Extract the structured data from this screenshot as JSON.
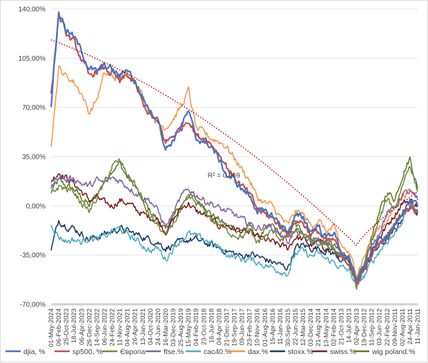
{
  "chart_data": {
    "type": "line",
    "title": "",
    "xlabel": "",
    "ylabel": "",
    "ylim": [
      -70,
      140
    ],
    "y_ticks": [
      "140,00%",
      "105,00%",
      "70,00%",
      "35,00%",
      "0,00%",
      "-35,00%",
      "-70,00%"
    ],
    "y_tick_values": [
      140,
      105,
      70,
      35,
      0,
      -35,
      -70
    ],
    "x_note": "dates run from newest (left) to oldest (right)",
    "categories": [
      "01-May-2024",
      "06-Feb-2024",
      "25-Oct-2023",
      "18-Jul-2023",
      "06-Apr-2023",
      "26-Dec-2022",
      "14-Sep-2022",
      "06-Jun-2022",
      "24-Feb-2022",
      "11-Nov-2021",
      "04-Aug-2021",
      "26-Apr-2021",
      "13-Jan-2021",
      "04-Oct-2020",
      "24-Jun-2020",
      "16-Mar-2020",
      "03-Dec-2019",
      "25-Aug-2019",
      "15-May-2019",
      "04-Feb-2019",
      "23-Oct-2018",
      "16-Jul-2018",
      "04-Apr-2018",
      "21-Dec-2017",
      "19-Sep-2017",
      "09-Jun-2017",
      "23-Feb-2017",
      "10-Nov-2016",
      "01-Aug-2016",
      "15-Apr-2016",
      "11-Jan-2016",
      "30-Sep-2015",
      "22-Jun-2015",
      "12-Mar-2015",
      "03-Dec-2014",
      "21-Aug-2014",
      "13-May-2014",
      "02-Feb-2014",
      "21-Oct-2013",
      "14-Jul-2013",
      "02-Apr-2013",
      "19-Dec-2012",
      "11-Sep-2012",
      "03-Jun-2012",
      "22-Feb-2012",
      "09-Nov-2011",
      "02-Aug-2011",
      "24-Apr-2011",
      "11-Jan-2011"
    ],
    "series": [
      {
        "name": "djia, %",
        "color": "#4472c4",
        "values": [
          72,
          138,
          125,
          120,
          110,
          98,
          95,
          100,
          97,
          92,
          98,
          88,
          77,
          67,
          62,
          40,
          47,
          57,
          67,
          47,
          47,
          42,
          33,
          22,
          18,
          12,
          7,
          -3,
          -5,
          -7,
          -13,
          -18,
          -8,
          -8,
          -18,
          -14,
          -23,
          -18,
          -33,
          -38,
          -53,
          -43,
          -33,
          -23,
          -23,
          -13,
          -3,
          3,
          0
        ]
      },
      {
        "name": "sp500, %",
        "color": "#c0504d",
        "values": [
          78,
          136,
          122,
          116,
          104,
          92,
          96,
          98,
          94,
          88,
          93,
          86,
          73,
          64,
          60,
          45,
          50,
          55,
          62,
          50,
          48,
          44,
          37,
          28,
          20,
          14,
          8,
          -2,
          -6,
          -9,
          -14,
          -20,
          -10,
          -12,
          -20,
          -18,
          -26,
          -24,
          -35,
          -40,
          -55,
          -45,
          -36,
          -26,
          -22,
          -12,
          -5,
          0,
          -3
        ]
      },
      {
        "name": "Європа",
        "color": "#70893c",
        "values": [
          8,
          14,
          12,
          10,
          2,
          -4,
          6,
          16,
          28,
          32,
          22,
          16,
          2,
          -8,
          -14,
          -22,
          -12,
          -4,
          6,
          2,
          -2,
          -10,
          -13,
          -18,
          -20,
          -22,
          -18,
          -26,
          -22,
          -18,
          -23,
          -22,
          -18,
          -20,
          -26,
          -27,
          -28,
          -30,
          -36,
          -38,
          -58,
          -45,
          -25,
          -10,
          5,
          -2,
          15,
          30,
          10
        ]
      },
      {
        "name": "ftse.%",
        "color": "#8064a2",
        "values": [
          12,
          22,
          18,
          20,
          16,
          14,
          18,
          16,
          20,
          18,
          14,
          10,
          6,
          4,
          -4,
          -15,
          -6,
          6,
          12,
          8,
          4,
          2,
          -2,
          -4,
          -6,
          -10,
          -13,
          -16,
          -14,
          -16,
          -20,
          -25,
          -18,
          -22,
          -26,
          -24,
          -28,
          -30,
          -36,
          -38,
          -52,
          -42,
          -28,
          -18,
          -5,
          -2,
          8,
          10,
          4
        ]
      },
      {
        "name": "cac40.%",
        "color": "#4bacc6",
        "values": [
          -12,
          -22,
          -25,
          -24,
          -26,
          -22,
          -24,
          -22,
          -18,
          -16,
          -20,
          -24,
          -28,
          -32,
          -30,
          -38,
          -30,
          -24,
          -20,
          -22,
          -24,
          -26,
          -30,
          -34,
          -36,
          -38,
          -38,
          -40,
          -42,
          -44,
          -46,
          -48,
          -34,
          -32,
          -36,
          -34,
          -38,
          -40,
          -44,
          -46,
          -56,
          -50,
          -40,
          -32,
          -25,
          -20,
          -10,
          0,
          -2
        ]
      },
      {
        "name": "dax.%",
        "color": "#f79646",
        "values": [
          44,
          98,
          92,
          88,
          80,
          66,
          76,
          94,
          92,
          90,
          94,
          90,
          78,
          68,
          58,
          56,
          62,
          70,
          82,
          55,
          52,
          48,
          46,
          42,
          34,
          26,
          18,
          6,
          2,
          0,
          -8,
          -14,
          -4,
          -6,
          -14,
          -10,
          -18,
          -16,
          -28,
          -34,
          -48,
          -36,
          -24,
          -14,
          -12,
          0,
          8,
          10,
          6
        ]
      },
      {
        "name": "stoxx.%",
        "color": "#1f3864",
        "values": [
          -32,
          -10,
          -14,
          -16,
          -20,
          -24,
          -22,
          -20,
          -18,
          -16,
          -18,
          -20,
          -22,
          -24,
          -26,
          -30,
          -28,
          -26,
          -24,
          -24,
          -26,
          -28,
          -30,
          -32,
          -34,
          -36,
          -34,
          -36,
          -38,
          -40,
          -42,
          -44,
          -30,
          -28,
          -30,
          -30,
          -32,
          -34,
          -38,
          -40,
          -55,
          -45,
          -35,
          -28,
          -24,
          -18,
          -8,
          0,
          -4
        ]
      },
      {
        "name": "swiss.%",
        "color": "#7b1e1e",
        "values": [
          18,
          24,
          20,
          16,
          10,
          4,
          6,
          2,
          0,
          4,
          2,
          -2,
          -6,
          -8,
          -10,
          -18,
          -10,
          -2,
          2,
          -4,
          -6,
          -10,
          -14,
          -14,
          -16,
          -18,
          -20,
          -22,
          -24,
          -26,
          -28,
          -30,
          -22,
          -24,
          -28,
          -26,
          -30,
          -32,
          -36,
          -40,
          -54,
          -44,
          -32,
          -22,
          -14,
          -6,
          2,
          4,
          0
        ]
      },
      {
        "name": "wig poland.%",
        "color": "#5c7d2d",
        "values": [
          10,
          18,
          14,
          12,
          6,
          0,
          8,
          18,
          26,
          30,
          20,
          14,
          4,
          -4,
          -10,
          -18,
          -8,
          0,
          8,
          4,
          0,
          -6,
          -10,
          -14,
          -16,
          -18,
          -14,
          -22,
          -18,
          -14,
          -20,
          -18,
          -14,
          -18,
          -22,
          -24,
          -26,
          -28,
          -34,
          -36,
          -55,
          -42,
          -20,
          -5,
          10,
          5,
          22,
          34,
          12
        ]
      }
    ],
    "trendline": {
      "r2_label": "R² = 0,969",
      "start": 118,
      "end": -28,
      "end_index": 40,
      "rise_end": 10
    },
    "legend_position": "bottom"
  }
}
